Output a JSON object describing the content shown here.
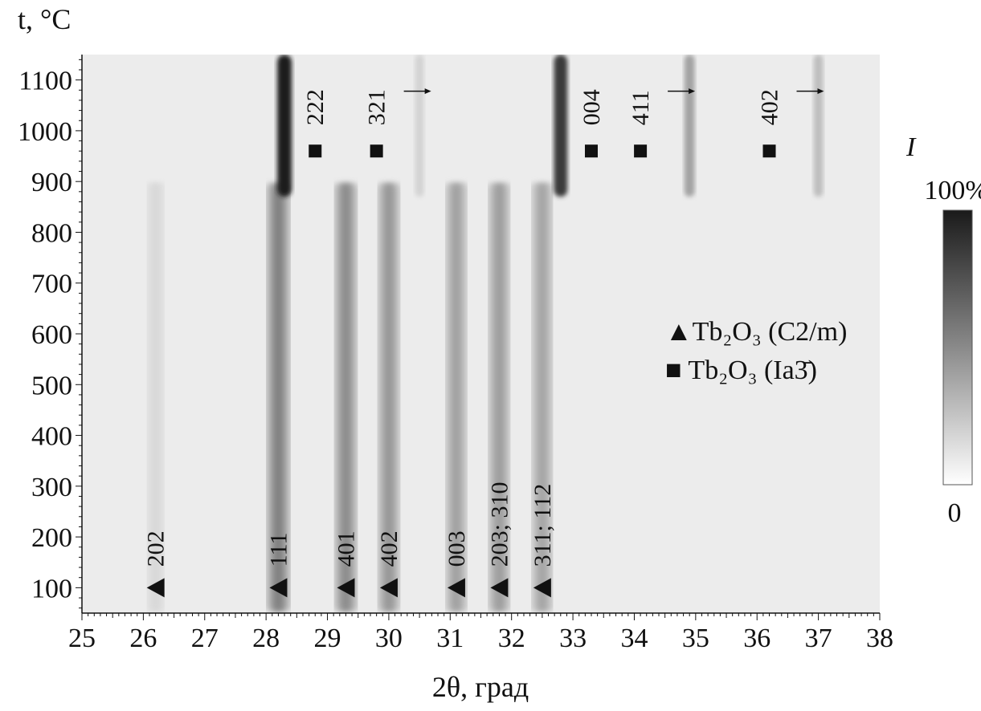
{
  "chart_data": {
    "type": "heatmap",
    "title": "",
    "xlabel": "2θ, град",
    "ylabel": "t, °C",
    "xlim": [
      25,
      38
    ],
    "ylim": [
      50,
      1150
    ],
    "x_ticks": [
      25,
      26,
      27,
      28,
      29,
      30,
      31,
      32,
      33,
      34,
      35,
      36,
      37,
      38
    ],
    "y_ticks": [
      100,
      200,
      300,
      400,
      500,
      600,
      700,
      800,
      900,
      1000,
      1100
    ],
    "colorbar": {
      "label": "I",
      "max_label": "100%",
      "min_label": "0",
      "colors": [
        "#ffffff",
        "#1a1a1a"
      ]
    },
    "legend": {
      "position": "right",
      "entries": [
        {
          "marker": "triangle",
          "text": "▲Tb₂O₃ (C2/m)"
        },
        {
          "marker": "square",
          "text": "■ Tb₂O₃ (Ia3̄)"
        }
      ]
    },
    "phases": [
      {
        "name": "Tb2O3 (C2/m)",
        "marker": "triangle",
        "t_range": [
          50,
          900
        ],
        "peaks": [
          {
            "label": "202",
            "two_theta": 26.2,
            "t": 100,
            "intensity": 0.12
          },
          {
            "label": "111",
            "two_theta": 28.2,
            "t": 100,
            "intensity": 0.55
          },
          {
            "label": "401",
            "two_theta": 29.3,
            "t": 100,
            "intensity": 0.5
          },
          {
            "label": "402",
            "two_theta": 30.0,
            "t": 100,
            "intensity": 0.45
          },
          {
            "label": "003",
            "two_theta": 31.1,
            "t": 100,
            "intensity": 0.4
          },
          {
            "label": "203; 310",
            "two_theta": 31.8,
            "t": 100,
            "intensity": 0.42
          },
          {
            "label": "311; 112",
            "two_theta": 32.5,
            "t": 100,
            "intensity": 0.38
          }
        ]
      },
      {
        "name": "Tb2O3 (Ia3)",
        "marker": "square",
        "t_range": [
          870,
          1150
        ],
        "peaks": [
          {
            "label": "222",
            "two_theta": 28.8,
            "t": 960,
            "line_two_theta": 28.3,
            "intensity": 1.0,
            "arrow": false
          },
          {
            "label": "321",
            "two_theta": 29.8,
            "t": 960,
            "line_two_theta": 30.5,
            "intensity": 0.12,
            "arrow": true
          },
          {
            "label": "004",
            "two_theta": 33.3,
            "t": 960,
            "line_two_theta": 32.8,
            "intensity": 0.85,
            "arrow": false
          },
          {
            "label": "411",
            "two_theta": 34.1,
            "t": 960,
            "line_two_theta": 34.9,
            "intensity": 0.35,
            "arrow": true
          },
          {
            "label": "402",
            "two_theta": 36.2,
            "t": 960,
            "line_two_theta": 37.0,
            "intensity": 0.22,
            "arrow": true
          }
        ]
      }
    ]
  }
}
